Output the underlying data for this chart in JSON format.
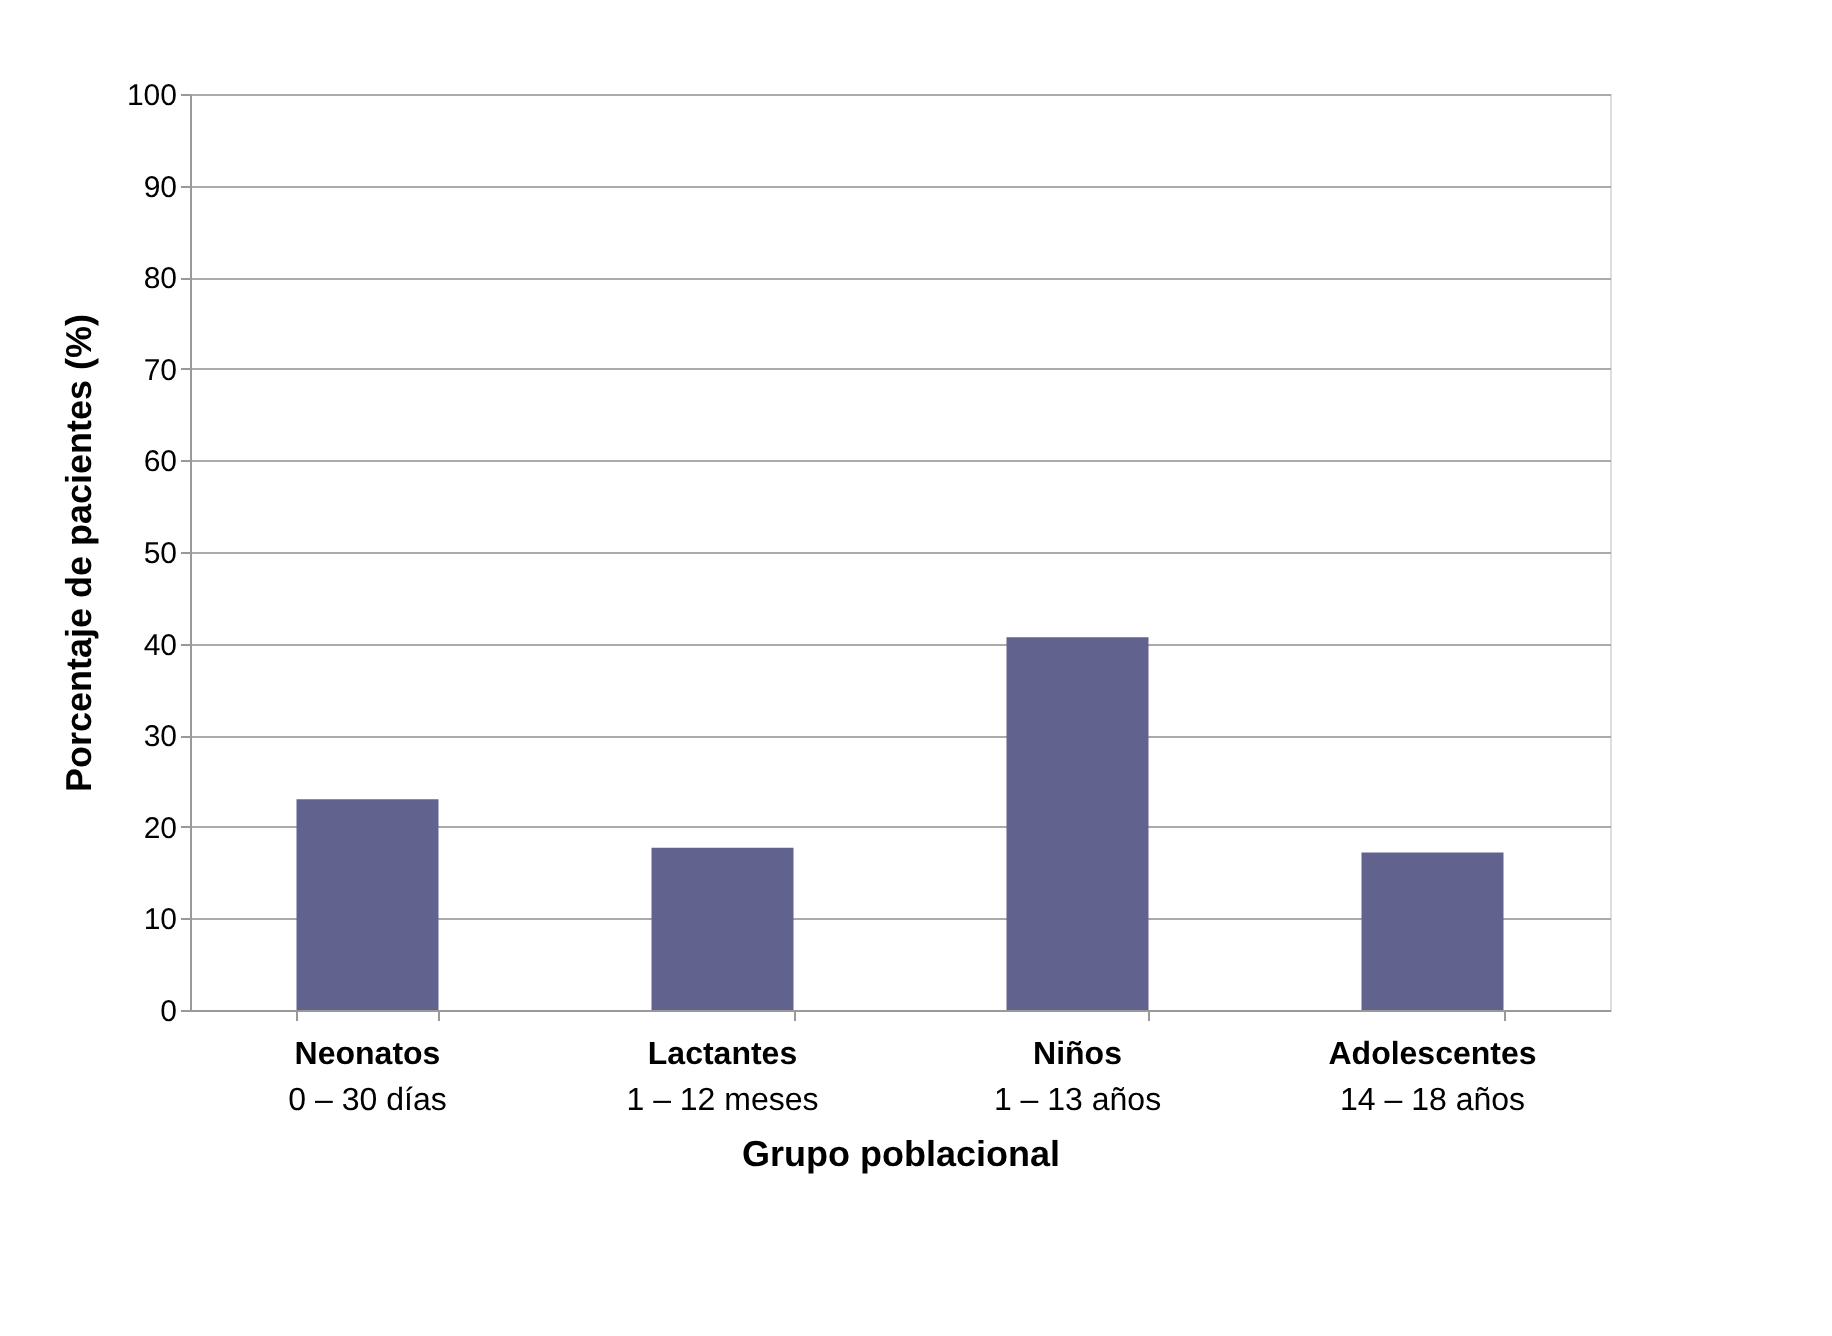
{
  "chart_data": {
    "type": "bar",
    "xlabel": "Grupo poblacional",
    "ylabel": "Porcentaje de pacientes (%)",
    "categories": [
      "Neonatos\n0 – 30 días",
      "Lactantes\n1 – 12 meses",
      "Niños\n1 – 13 años",
      "Adolescentes\n14 – 18 años"
    ],
    "values": [
      23,
      17.7,
      40.7,
      17.2
    ],
    "color": "#62628e",
    "ylim": [
      0,
      100
    ],
    "yticks": [
      0,
      10,
      20,
      30,
      40,
      50,
      60,
      70,
      80,
      90,
      100
    ],
    "grid": "y"
  }
}
